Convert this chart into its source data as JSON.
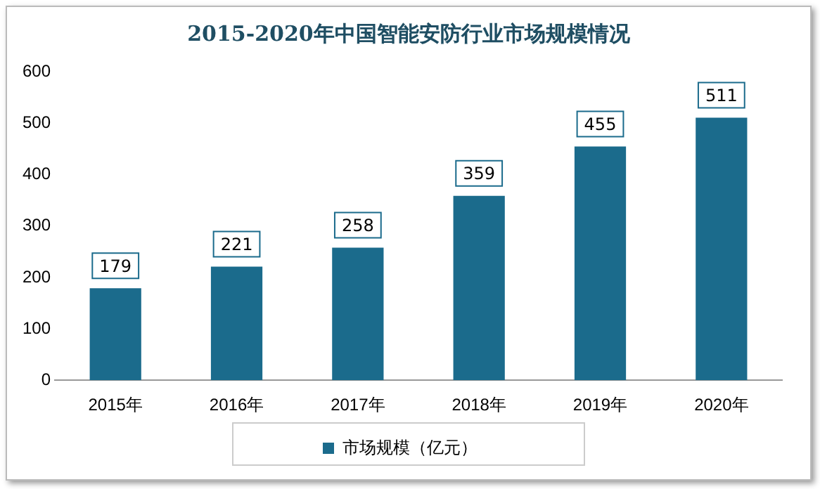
{
  "chart_data": {
    "type": "bar",
    "title": "2015-2020年中国智能安防行业市场规模情况",
    "categories": [
      "2015年",
      "2016年",
      "2017年",
      "2018年",
      "2019年",
      "2020年"
    ],
    "series": [
      {
        "name": "市场规模（亿元）",
        "color": "#1b6b8c",
        "values": [
          179,
          221,
          258,
          359,
          455,
          511
        ]
      }
    ],
    "ylim": [
      0,
      600
    ],
    "yticks": [
      0,
      100,
      200,
      300,
      400,
      500,
      600
    ],
    "grid": false,
    "legend": "bottom",
    "data_labels": true
  }
}
